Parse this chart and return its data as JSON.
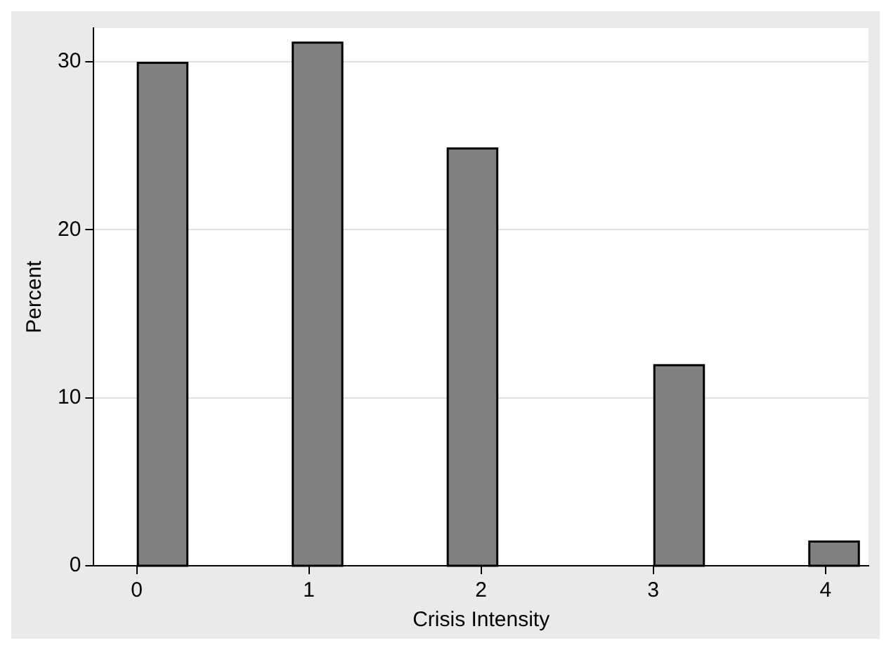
{
  "chart_data": {
    "type": "histogram",
    "xlabel": "Crisis Intensity",
    "ylabel": "Percent",
    "bins": [
      0,
      0.3,
      0.6,
      0.9,
      1.2,
      1.5,
      1.8,
      2.1,
      2.4,
      2.7,
      3.0,
      3.3,
      3.6,
      3.9,
      4.2
    ],
    "values": [
      30,
      0,
      0,
      31.2,
      0,
      0,
      24.9,
      0,
      0,
      0,
      12,
      0,
      0,
      1.5
    ],
    "color": "#808080",
    "xlim": [
      -0.25,
      4.25
    ],
    "xticks": [
      0,
      1,
      2,
      3,
      4
    ],
    "ylim": [
      0,
      32
    ],
    "yticks": [
      0,
      10,
      20,
      30
    ],
    "grid": "y"
  }
}
